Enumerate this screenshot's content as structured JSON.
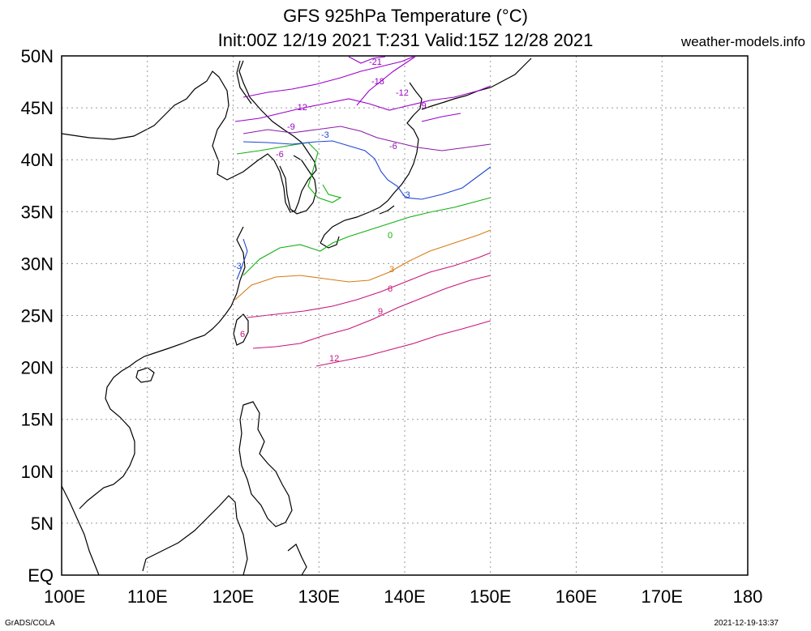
{
  "header": {
    "title_line1": "GFS 925hPa Temperature (°C)",
    "title_line2": "Init:00Z 12/19 2021 T:231 Valid:15Z 12/28 2021",
    "site": "weather-models.info"
  },
  "footer": {
    "left": "GrADS/COLA",
    "right": "2021-12-19-13:37"
  },
  "axes": {
    "lon_labels": [
      "100E",
      "110E",
      "120E",
      "130E",
      "140E",
      "150E",
      "160E",
      "170E",
      "180"
    ],
    "lat_labels": [
      "EQ",
      "5N",
      "10N",
      "15N",
      "20N",
      "25N",
      "30N",
      "35N",
      "40N",
      "45N",
      "50N"
    ]
  },
  "contour_labels": [
    {
      "text": "-21",
      "color": "#9a00c8"
    },
    {
      "text": "-18",
      "color": "#9a00c8"
    },
    {
      "text": "-12",
      "color": "#9a00c8"
    },
    {
      "text": "-12",
      "color": "#9a00c8"
    },
    {
      "text": "-9",
      "color": "#9a00c8"
    },
    {
      "text": "-9",
      "color": "#9a00c8"
    },
    {
      "text": "-6",
      "color": "#8c1aa8"
    },
    {
      "text": "-6",
      "color": "#8c1aa8"
    },
    {
      "text": "-3",
      "color": "#1e46d2"
    },
    {
      "text": "-3",
      "color": "#1e46d2"
    },
    {
      "text": "-3",
      "color": "#1e46d2"
    },
    {
      "text": "0",
      "color": "#10b010"
    },
    {
      "text": "3",
      "color": "#d87a14"
    },
    {
      "text": "6",
      "color": "#c8147a"
    },
    {
      "text": "6",
      "color": "#c8147a"
    },
    {
      "text": "9",
      "color": "#c8147a"
    },
    {
      "text": "12",
      "color": "#c8147a"
    }
  ],
  "colors": {
    "frame": "#000000",
    "grid": "#9a9a9a",
    "coast": "#000000",
    "c_minus_cold": "#9a00c8",
    "c_minus6": "#8c1aa8",
    "c_minus3": "#1e46d2",
    "c_zero": "#10b010",
    "c_plus3": "#d87a14",
    "c_warm": "#c8147a"
  }
}
